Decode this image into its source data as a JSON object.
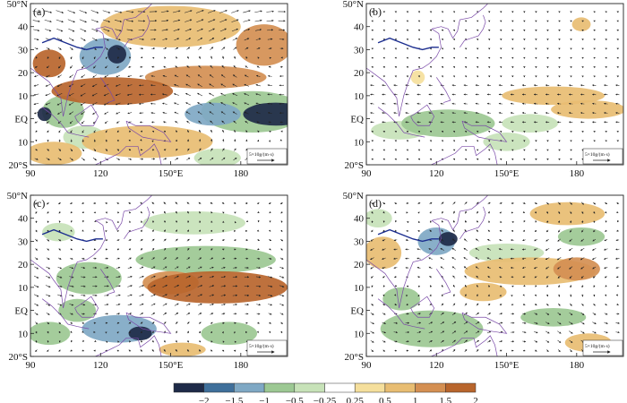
{
  "figure": {
    "description_labels_only": true
  },
  "axes": {
    "lon_ticks": [
      "90",
      "120",
      "150°E",
      "180"
    ],
    "lon_values": [
      90,
      120,
      150,
      180
    ],
    "lat_ticks": [
      "50°N",
      "40",
      "30",
      "20",
      "10",
      "EQ",
      "10",
      "20°S"
    ],
    "lat_values": [
      50,
      40,
      30,
      20,
      10,
      0,
      -10,
      -20
    ],
    "lon_range": [
      90,
      200
    ],
    "lat_range": [
      -20,
      50
    ]
  },
  "panels": [
    {
      "tag": "(a)",
      "ref_label": "5×10g/(m·s)"
    },
    {
      "tag": "(b)",
      "ref_label": "5×10g/(m·s)"
    },
    {
      "tag": "(c)",
      "ref_label": "5×10g/(m·s)"
    },
    {
      "tag": "(d)",
      "ref_label": "5×10g/(m·s)"
    }
  ],
  "colorbar": {
    "labels": [
      "−2",
      "−1.5",
      "−1",
      "−0.5",
      "−0.25",
      "0.25",
      "0.5",
      "1",
      "1.5",
      "2"
    ],
    "colors": [
      "#1e2a48",
      "#3f6f9a",
      "#7fa8c4",
      "#9cc893",
      "#c7e2b8",
      "#ffffff",
      "#f5df9c",
      "#e8bd72",
      "#d48f52",
      "#b8652c"
    ]
  },
  "chart_data": {
    "type": "heatmap",
    "title": "",
    "xlabel": "",
    "ylabel": "",
    "x_range": [
      90,
      200
    ],
    "y_range": [
      -20,
      50
    ],
    "color_levels": [
      -2,
      -1.5,
      -1,
      -0.5,
      -0.25,
      0.25,
      0.5,
      1,
      1.5,
      2
    ],
    "vector_overlay": true,
    "panels": [
      {
        "tag": "(a)",
        "blobs": [
          {
            "lon": 195,
            "lat": 2,
            "rx": 14,
            "ry": 5,
            "v": -2.2
          },
          {
            "lon": 168,
            "lat": 2,
            "rx": 12,
            "ry": 5,
            "v": -1.4
          },
          {
            "lon": 185,
            "lat": 3,
            "rx": 22,
            "ry": 9,
            "v": -0.9
          },
          {
            "lon": 127,
            "lat": 28,
            "rx": 4,
            "ry": 4,
            "v": -2.0
          },
          {
            "lon": 122,
            "lat": 27,
            "rx": 11,
            "ry": 8,
            "v": -1.1
          },
          {
            "lon": 96,
            "lat": 2,
            "rx": 3,
            "ry": 3,
            "v": -2.0
          },
          {
            "lon": 104,
            "lat": 3,
            "rx": 9,
            "ry": 7,
            "v": -0.8
          },
          {
            "lon": 125,
            "lat": 12,
            "rx": 26,
            "ry": 6,
            "v": 1.6
          },
          {
            "lon": 165,
            "lat": 18,
            "rx": 26,
            "ry": 5,
            "v": 1.2
          },
          {
            "lon": 190,
            "lat": 32,
            "rx": 12,
            "ry": 9,
            "v": 1.3
          },
          {
            "lon": 150,
            "lat": 40,
            "rx": 30,
            "ry": 9,
            "v": 0.7
          },
          {
            "lon": 98,
            "lat": 24,
            "rx": 7,
            "ry": 6,
            "v": 1.5
          },
          {
            "lon": 140,
            "lat": -10,
            "rx": 28,
            "ry": 7,
            "v": 0.8
          },
          {
            "lon": 100,
            "lat": -15,
            "rx": 12,
            "ry": 5,
            "v": 0.9
          },
          {
            "lon": 113,
            "lat": -8,
            "rx": 9,
            "ry": 5,
            "v": -0.4
          },
          {
            "lon": 170,
            "lat": -17,
            "rx": 10,
            "ry": 4,
            "v": -0.4
          }
        ]
      },
      {
        "tag": "(b)",
        "blobs": [
          {
            "lon": 125,
            "lat": -2,
            "rx": 20,
            "ry": 6,
            "v": -0.6
          },
          {
            "lon": 104,
            "lat": -5,
            "rx": 12,
            "ry": 4,
            "v": -0.4
          },
          {
            "lon": 160,
            "lat": -2,
            "rx": 12,
            "ry": 4,
            "v": -0.35
          },
          {
            "lon": 150,
            "lat": -10,
            "rx": 10,
            "ry": 4,
            "v": -0.35
          },
          {
            "lon": 170,
            "lat": 10,
            "rx": 22,
            "ry": 4,
            "v": 0.6
          },
          {
            "lon": 185,
            "lat": 4,
            "rx": 16,
            "ry": 4,
            "v": 0.5
          },
          {
            "lon": 182,
            "lat": 41,
            "rx": 4,
            "ry": 3,
            "v": 0.5
          },
          {
            "lon": 112,
            "lat": 18,
            "rx": 3,
            "ry": 3,
            "v": 0.4
          }
        ]
      },
      {
        "tag": "(c)",
        "blobs": [
          {
            "lon": 170,
            "lat": 10,
            "rx": 30,
            "ry": 7,
            "v": 1.6
          },
          {
            "lon": 150,
            "lat": 12,
            "rx": 12,
            "ry": 5,
            "v": 1.1
          },
          {
            "lon": 137,
            "lat": -10,
            "rx": 5,
            "ry": 3,
            "v": -2.0
          },
          {
            "lon": 128,
            "lat": -8,
            "rx": 16,
            "ry": 6,
            "v": -1.0
          },
          {
            "lon": 98,
            "lat": -10,
            "rx": 9,
            "ry": 5,
            "v": -0.9
          },
          {
            "lon": 115,
            "lat": 14,
            "rx": 14,
            "ry": 7,
            "v": -0.7
          },
          {
            "lon": 165,
            "lat": 22,
            "rx": 30,
            "ry": 6,
            "v": -0.5
          },
          {
            "lon": 160,
            "lat": 38,
            "rx": 22,
            "ry": 5,
            "v": -0.4
          },
          {
            "lon": 102,
            "lat": 34,
            "rx": 7,
            "ry": 4,
            "v": -0.4
          },
          {
            "lon": 175,
            "lat": -10,
            "rx": 12,
            "ry": 5,
            "v": -0.5
          },
          {
            "lon": 110,
            "lat": 0,
            "rx": 8,
            "ry": 5,
            "v": -0.5
          },
          {
            "lon": 155,
            "lat": -17,
            "rx": 10,
            "ry": 3,
            "v": 0.5
          }
        ]
      },
      {
        "tag": "(d)",
        "blobs": [
          {
            "lon": 125,
            "lat": 31,
            "rx": 4,
            "ry": 3,
            "v": -2.0
          },
          {
            "lon": 120,
            "lat": 30,
            "rx": 8,
            "ry": 6,
            "v": -1.0
          },
          {
            "lon": 97,
            "lat": 25,
            "rx": 8,
            "ry": 7,
            "v": 0.9
          },
          {
            "lon": 160,
            "lat": 17,
            "rx": 28,
            "ry": 6,
            "v": 0.7
          },
          {
            "lon": 180,
            "lat": 18,
            "rx": 10,
            "ry": 5,
            "v": 1.3
          },
          {
            "lon": 176,
            "lat": 42,
            "rx": 16,
            "ry": 5,
            "v": 0.8
          },
          {
            "lon": 182,
            "lat": 32,
            "rx": 10,
            "ry": 4,
            "v": -0.8
          },
          {
            "lon": 150,
            "lat": 25,
            "rx": 16,
            "ry": 4,
            "v": -0.4
          },
          {
            "lon": 118,
            "lat": -8,
            "rx": 22,
            "ry": 8,
            "v": -0.6
          },
          {
            "lon": 105,
            "lat": 5,
            "rx": 8,
            "ry": 5,
            "v": -0.5
          },
          {
            "lon": 185,
            "lat": -14,
            "rx": 10,
            "ry": 4,
            "v": 0.9
          },
          {
            "lon": 170,
            "lat": -3,
            "rx": 14,
            "ry": 4,
            "v": -0.5
          },
          {
            "lon": 140,
            "lat": 8,
            "rx": 10,
            "ry": 4,
            "v": 0.5
          },
          {
            "lon": 95,
            "lat": 40,
            "rx": 6,
            "ry": 4,
            "v": -0.4
          }
        ]
      }
    ]
  }
}
